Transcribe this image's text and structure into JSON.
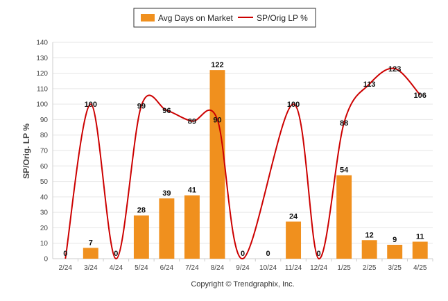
{
  "chart_data": {
    "type": "bar",
    "categories": [
      "2/24",
      "3/24",
      "4/24",
      "5/24",
      "6/24",
      "7/24",
      "8/24",
      "9/24",
      "10/24",
      "11/24",
      "12/24",
      "1/25",
      "2/25",
      "3/25",
      "4/25"
    ],
    "series": [
      {
        "name": "Avg Days on Market",
        "type": "bar",
        "color": "#f0901e",
        "values": [
          0,
          7,
          0,
          28,
          39,
          41,
          122,
          0,
          0,
          24,
          0,
          54,
          12,
          9,
          11
        ],
        "data_labels": [
          "0",
          "7",
          "0",
          "28",
          "39",
          "41",
          "122",
          "0",
          "0",
          "24",
          "0",
          "54",
          "12",
          "9",
          "11"
        ]
      },
      {
        "name": "SP/Orig LP %",
        "type": "line",
        "color": "#cc0000",
        "values": [
          0,
          100,
          0,
          99,
          96,
          89,
          90,
          0,
          null,
          100,
          0,
          88,
          113,
          123,
          106
        ],
        "data_labels": [
          "",
          "100",
          "",
          "99",
          "96",
          "89",
          "90",
          "",
          "",
          "100",
          "",
          "88",
          "113",
          "123",
          "106"
        ]
      }
    ],
    "ylabel": "SP/Orig. LP %",
    "ylim": [
      0,
      140
    ],
    "yticks": [
      0,
      10,
      20,
      30,
      40,
      50,
      60,
      70,
      80,
      90,
      100,
      110,
      120,
      130,
      140
    ],
    "grid": true,
    "legend_position": "top-center"
  },
  "credit": "Copyright © Trendgraphix, Inc."
}
